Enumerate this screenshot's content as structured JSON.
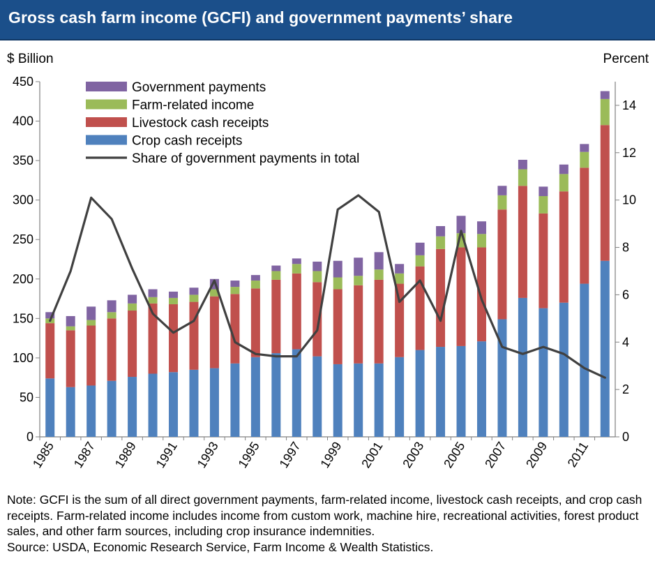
{
  "header": {
    "title": "Gross cash farm income (GCFI) and government payments’ share"
  },
  "note": {
    "text": "Note: GCFI is the sum of all direct government payments, farm-related income, livestock cash receipts, and crop cash receipts. Farm-related income includes income from custom work, machine hire, recreational activities, forest product sales, and other  farm sources, including crop insurance indemnities.",
    "source": "Source: USDA, Economic Research Service, Farm Income & Wealth Statistics."
  },
  "colors": {
    "crop": "#4f81bd",
    "livestock": "#c0504d",
    "farm_related": "#9bbb59",
    "government": "#8064a2",
    "share_line": "#404040",
    "header_bg": "#1b4f8a"
  },
  "chart_data": {
    "type": "bar",
    "stacked": true,
    "title": "Gross cash farm income (GCFI) and government payments’ share",
    "ylabel": "$ Billion",
    "y2label": "Percent",
    "ylim": [
      0,
      450
    ],
    "y2lim": [
      0,
      15
    ],
    "yticks": [
      0,
      50,
      100,
      150,
      200,
      250,
      300,
      350,
      400,
      450
    ],
    "y2ticks": [
      0,
      2,
      4,
      6,
      8,
      10,
      12,
      14
    ],
    "grid": false,
    "legend_position": "top-left",
    "categories": [
      "1985",
      "1986",
      "1987",
      "1988",
      "1989",
      "1990",
      "1991",
      "1992",
      "1993",
      "1994",
      "1995",
      "1996",
      "1997",
      "1998",
      "1999",
      "2000",
      "2001",
      "2002",
      "2003",
      "2004",
      "2005",
      "2006",
      "2007",
      "2008",
      "2009",
      "2010",
      "2011",
      "2012"
    ],
    "xtick_labels": [
      "1985",
      "",
      "1987",
      "",
      "1989",
      "",
      "1991",
      "",
      "1993",
      "",
      "1995",
      "",
      "1997",
      "",
      "1999",
      "",
      "2001",
      "",
      "2003",
      "",
      "2005",
      "",
      "2007",
      "",
      "2009",
      "",
      "2011",
      ""
    ],
    "series": [
      {
        "name": "Crop cash receipts",
        "kind": "bar",
        "values": [
          74,
          63,
          65,
          71,
          76,
          80,
          82,
          85,
          87,
          93,
          101,
          106,
          111,
          102,
          92,
          93,
          93,
          101,
          110,
          114,
          115,
          121,
          149,
          176,
          163,
          170,
          194,
          223
        ]
      },
      {
        "name": "Livestock cash receipts",
        "kind": "bar",
        "values": [
          70,
          72,
          76,
          79,
          84,
          89,
          86,
          86,
          91,
          88,
          87,
          93,
          96,
          94,
          95,
          99,
          106,
          93,
          106,
          124,
          125,
          119,
          139,
          142,
          120,
          141,
          147,
          172
        ]
      },
      {
        "name": "Farm-related income",
        "kind": "bar",
        "values": [
          6,
          5,
          7,
          8,
          9,
          8,
          8,
          9,
          9,
          9,
          10,
          11,
          12,
          14,
          15,
          12,
          13,
          13,
          14,
          16,
          18,
          17,
          18,
          21,
          22,
          22,
          20,
          33
        ]
      },
      {
        "name": "Government payments",
        "kind": "bar",
        "values": [
          8,
          13,
          17,
          15,
          11,
          10,
          8,
          9,
          13,
          8,
          7,
          7,
          7,
          12,
          21,
          23,
          22,
          12,
          16,
          13,
          22,
          16,
          12,
          12,
          12,
          12,
          10,
          10
        ]
      },
      {
        "name": "Share of government payments in total",
        "kind": "line",
        "axis": "right",
        "values": [
          4.9,
          7.0,
          10.1,
          9.2,
          7.1,
          5.2,
          4.4,
          4.9,
          6.6,
          4.0,
          3.5,
          3.4,
          3.4,
          4.5,
          9.6,
          10.2,
          9.5,
          5.7,
          6.6,
          4.9,
          8.7,
          5.8,
          3.8,
          3.5,
          3.8,
          3.5,
          2.9,
          2.5
        ]
      }
    ]
  }
}
